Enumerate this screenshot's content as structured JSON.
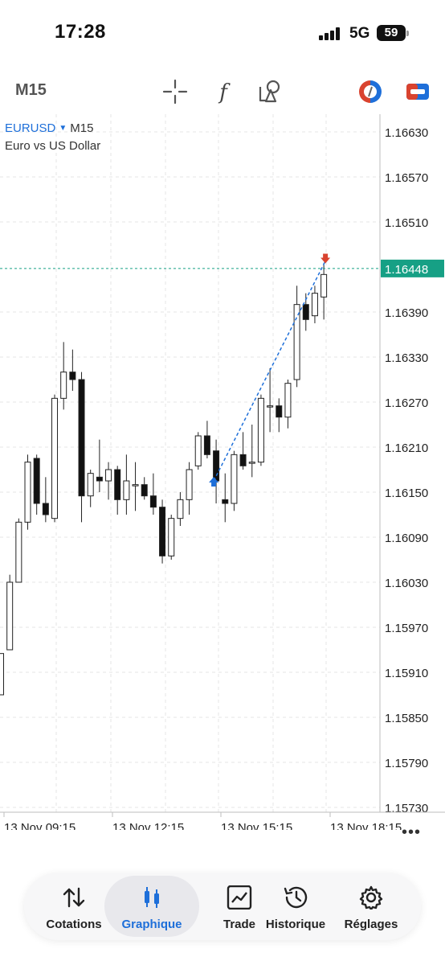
{
  "status": {
    "time": "17:28",
    "network": "5G",
    "battery": "59"
  },
  "toolbar": {
    "timeframe": "M15",
    "icons": [
      "crosshair-icon",
      "indicator-f-icon",
      "objects-icon",
      "one-click-trading-icon",
      "trade-panel-icon"
    ]
  },
  "symbol": {
    "name": "EURUSD",
    "timeframe": "M15",
    "description": "Euro vs US Dollar"
  },
  "colors": {
    "accent": "#1e6fd9",
    "price_line": "#16a085",
    "buy_arrow": "#1e6fd9",
    "sell_arrow": "#d9432f"
  },
  "chart_data": {
    "type": "candlestick",
    "price_levels": [
      "1.16630",
      "1.16570",
      "1.16510",
      "1.16390",
      "1.16330",
      "1.16270",
      "1.16210",
      "1.16150",
      "1.16090",
      "1.16030",
      "1.15970",
      "1.15910",
      "1.15850",
      "1.15790",
      "1.15730"
    ],
    "ylim": [
      1.1568,
      1.1668
    ],
    "current_price": "1.16448",
    "time_labels": [
      "13 Nov 09:15",
      "13 Nov 12:15",
      "13 Nov 15:15",
      "13 Nov 18:15"
    ],
    "candles": [
      {
        "o": 1.1588,
        "h": 1.15935,
        "l": 1.1588,
        "c": 1.15935
      },
      {
        "o": 1.1594,
        "h": 1.1604,
        "l": 1.1594,
        "c": 1.1603
      },
      {
        "o": 1.1603,
        "h": 1.16115,
        "l": 1.1603,
        "c": 1.1611
      },
      {
        "o": 1.1611,
        "h": 1.162,
        "l": 1.161,
        "c": 1.1619
      },
      {
        "o": 1.16195,
        "h": 1.162,
        "l": 1.1612,
        "c": 1.16135
      },
      {
        "o": 1.16135,
        "h": 1.1617,
        "l": 1.1611,
        "c": 1.1612
      },
      {
        "o": 1.16115,
        "h": 1.1628,
        "l": 1.1611,
        "c": 1.16275
      },
      {
        "o": 1.16275,
        "h": 1.1635,
        "l": 1.1626,
        "c": 1.1631
      },
      {
        "o": 1.1631,
        "h": 1.1634,
        "l": 1.16285,
        "c": 1.163
      },
      {
        "o": 1.163,
        "h": 1.1631,
        "l": 1.1611,
        "c": 1.16145
      },
      {
        "o": 1.16145,
        "h": 1.1618,
        "l": 1.1613,
        "c": 1.16175
      },
      {
        "o": 1.1617,
        "h": 1.1622,
        "l": 1.1615,
        "c": 1.16165
      },
      {
        "o": 1.16165,
        "h": 1.1619,
        "l": 1.1614,
        "c": 1.1618
      },
      {
        "o": 1.1618,
        "h": 1.16185,
        "l": 1.1612,
        "c": 1.1614
      },
      {
        "o": 1.1614,
        "h": 1.162,
        "l": 1.1612,
        "c": 1.16165
      },
      {
        "o": 1.1616,
        "h": 1.1619,
        "l": 1.16125,
        "c": 1.1616
      },
      {
        "o": 1.1616,
        "h": 1.1617,
        "l": 1.1614,
        "c": 1.16145
      },
      {
        "o": 1.16145,
        "h": 1.16175,
        "l": 1.1612,
        "c": 1.1613
      },
      {
        "o": 1.1613,
        "h": 1.1614,
        "l": 1.16055,
        "c": 1.16065
      },
      {
        "o": 1.16065,
        "h": 1.1612,
        "l": 1.1606,
        "c": 1.16115
      },
      {
        "o": 1.16115,
        "h": 1.1615,
        "l": 1.16105,
        "c": 1.1614
      },
      {
        "o": 1.1614,
        "h": 1.1619,
        "l": 1.1612,
        "c": 1.1618
      },
      {
        "o": 1.16185,
        "h": 1.1623,
        "l": 1.1618,
        "c": 1.16225
      },
      {
        "o": 1.16225,
        "h": 1.16245,
        "l": 1.16195,
        "c": 1.162
      },
      {
        "o": 1.16205,
        "h": 1.1622,
        "l": 1.16135,
        "c": 1.16165
      },
      {
        "o": 1.1614,
        "h": 1.16175,
        "l": 1.1611,
        "c": 1.16135
      },
      {
        "o": 1.16135,
        "h": 1.16205,
        "l": 1.16125,
        "c": 1.162
      },
      {
        "o": 1.162,
        "h": 1.1623,
        "l": 1.1618,
        "c": 1.16185
      },
      {
        "o": 1.1619,
        "h": 1.1624,
        "l": 1.1617,
        "c": 1.1619
      },
      {
        "o": 1.1619,
        "h": 1.1628,
        "l": 1.16185,
        "c": 1.16275
      },
      {
        "o": 1.16265,
        "h": 1.16315,
        "l": 1.1623,
        "c": 1.16265
      },
      {
        "o": 1.16265,
        "h": 1.16275,
        "l": 1.1623,
        "c": 1.1625
      },
      {
        "o": 1.1625,
        "h": 1.163,
        "l": 1.16235,
        "c": 1.16295
      },
      {
        "o": 1.163,
        "h": 1.16425,
        "l": 1.1629,
        "c": 1.164
      },
      {
        "o": 1.164,
        "h": 1.16415,
        "l": 1.16365,
        "c": 1.1638
      },
      {
        "o": 1.16385,
        "h": 1.16425,
        "l": 1.16375,
        "c": 1.16415
      },
      {
        "o": 1.1641,
        "h": 1.16455,
        "l": 1.1638,
        "c": 1.1644
      }
    ],
    "trade": {
      "buy_candle": 24,
      "buy_price": 1.16165,
      "sell_candle": 36,
      "sell_price": 1.16458
    },
    "grid": true
  },
  "more_label": "•••",
  "tabs": [
    {
      "label": "Cotations",
      "icon": "quotes-arrows-icon",
      "active": false
    },
    {
      "label": "Graphique",
      "icon": "chart-candles-icon",
      "active": true
    },
    {
      "label": "Trade",
      "icon": "trade-chart-icon",
      "active": false
    },
    {
      "label": "Historique",
      "icon": "history-clock-icon",
      "active": false
    },
    {
      "label": "Réglages",
      "icon": "settings-gear-icon",
      "active": false
    }
  ]
}
